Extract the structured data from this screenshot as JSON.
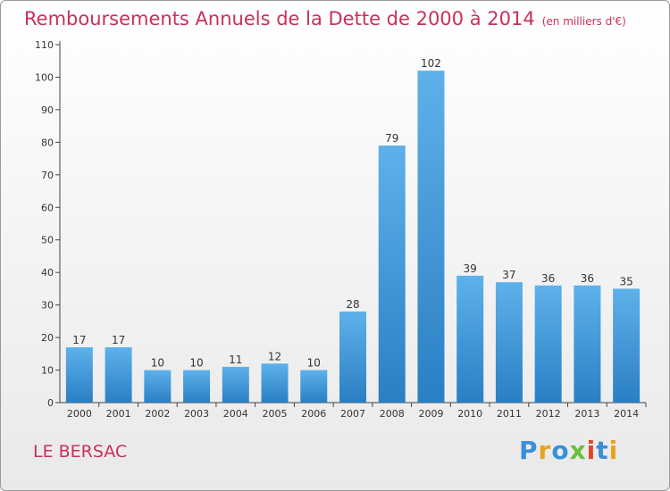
{
  "header": {
    "title": "Remboursements Annuels de la Dette de 2000 à 2014",
    "unit": "(en milliers d'€)"
  },
  "footer": {
    "commune": "LE BERSAC",
    "logo": "Proxiti"
  },
  "colors": {
    "title": "#c9305a",
    "bar_top": "#5eb1ea",
    "bar_bottom": "#2a7fc4",
    "logo": [
      "#3a8fd6",
      "#e8a21b",
      "#3a8fd6",
      "#6bbf3a",
      "#e0452c",
      "#3a8fd6",
      "#e8a21b"
    ]
  },
  "chart_data": {
    "type": "bar",
    "categories": [
      "2000",
      "2001",
      "2002",
      "2003",
      "2004",
      "2005",
      "2006",
      "2007",
      "2008",
      "2009",
      "2010",
      "2011",
      "2012",
      "2013",
      "2014"
    ],
    "values": [
      17,
      17,
      10,
      10,
      11,
      12,
      10,
      28,
      79,
      102,
      39,
      37,
      36,
      36,
      35
    ],
    "ylim": [
      0,
      110
    ],
    "yticks": [
      0,
      10,
      20,
      30,
      40,
      50,
      60,
      70,
      80,
      90,
      100,
      110
    ],
    "grid": false,
    "data_labels": true
  }
}
